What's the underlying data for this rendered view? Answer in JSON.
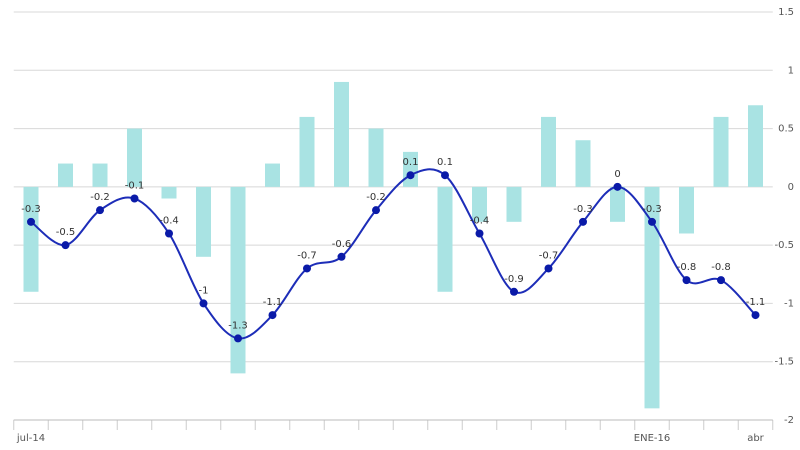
{
  "chart_data": {
    "type": "combo",
    "categories": [
      "jul-14",
      null,
      null,
      null,
      null,
      null,
      null,
      null,
      null,
      null,
      null,
      null,
      null,
      null,
      null,
      null,
      null,
      null,
      "ENE-16",
      null,
      null,
      "abr"
    ],
    "series": [
      {
        "type": "bar",
        "color": "#a9e3e3",
        "values": [
          -0.9,
          0.2,
          0.2,
          0.5,
          -0.1,
          -0.6,
          -1.6,
          0.2,
          0.6,
          0.9,
          0.5,
          0.3,
          -0.9,
          -0.3,
          -0.3,
          0.6,
          0.4,
          -0.3,
          -1.9,
          -0.4,
          0.6,
          0.7
        ]
      },
      {
        "type": "line",
        "color": "#1d2db8",
        "values": [
          -0.3,
          -0.5,
          -0.2,
          -0.1,
          -0.4,
          -1,
          -1.3,
          -1.1,
          -0.7,
          -0.6,
          -0.2,
          0.1,
          0.1,
          -0.4,
          -0.9,
          -0.7,
          -0.3,
          0,
          -0.3,
          -0.8,
          -0.8,
          -1.1
        ]
      }
    ],
    "ylim": [
      -2,
      1.5
    ],
    "yticks": [
      -2,
      -1.5,
      -1,
      -0.5,
      0,
      0.5,
      1,
      1.5
    ],
    "grid": true
  }
}
